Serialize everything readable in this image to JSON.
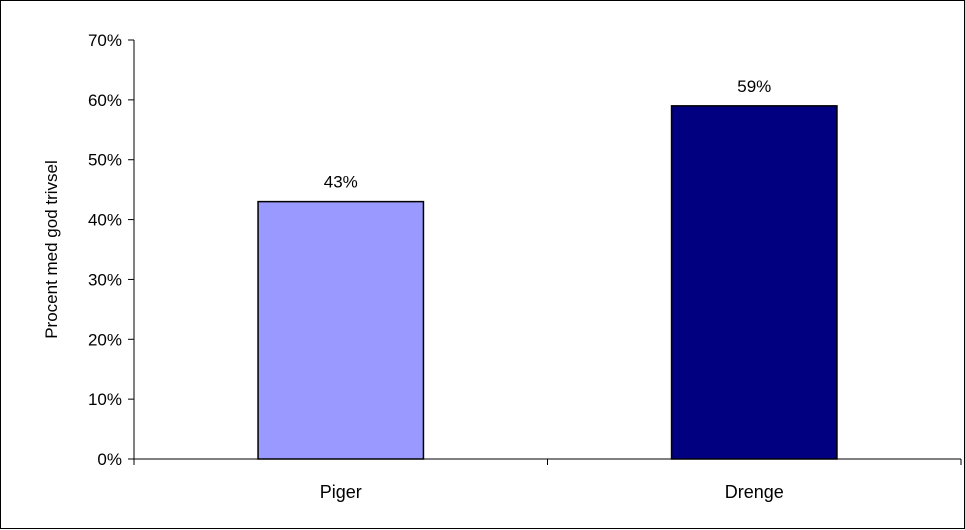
{
  "chart_data": {
    "type": "bar",
    "categories": [
      "Piger",
      "Drenge"
    ],
    "values": [
      43,
      59
    ],
    "value_labels": [
      "43%",
      "59%"
    ],
    "bar_colors": [
      "#9999ff",
      "#000080"
    ],
    "title": "",
    "xlabel": "",
    "ylabel": "Procent med god trivsel",
    "ylim": [
      0,
      70
    ],
    "y_ticks": [
      0,
      10,
      20,
      30,
      40,
      50,
      60,
      70
    ],
    "y_tick_labels": [
      "0%",
      "10%",
      "20%",
      "30%",
      "40%",
      "50%",
      "60%",
      "70%"
    ],
    "grid": false,
    "legend": "none"
  }
}
